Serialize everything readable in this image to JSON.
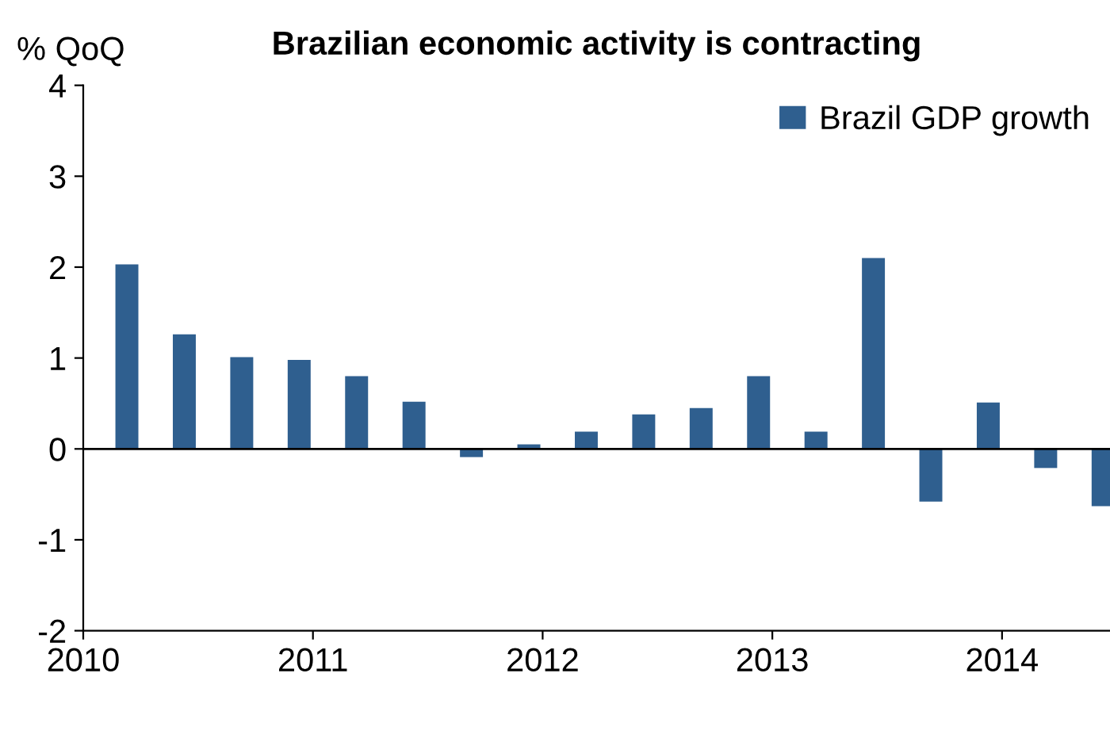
{
  "chart_data": {
    "type": "bar",
    "title": "Brazilian economic activity is contracting",
    "ylabel": "% QoQ",
    "x": [
      2010.19,
      2010.44,
      2010.69,
      2010.94,
      2011.19,
      2011.44,
      2011.69,
      2011.94,
      2012.19,
      2012.44,
      2012.69,
      2012.94,
      2013.19,
      2013.44,
      2013.69,
      2013.94,
      2014.19,
      2014.44
    ],
    "series": [
      {
        "name": "Brazil GDP growth",
        "color": "#2f5f8f",
        "values": [
          2.03,
          1.26,
          1.01,
          0.98,
          0.8,
          0.52,
          -0.09,
          0.05,
          0.19,
          0.38,
          0.45,
          0.8,
          0.19,
          2.1,
          -0.58,
          0.51,
          -0.21,
          -0.63
        ]
      }
    ],
    "xlim": [
      2010,
      2014.47
    ],
    "xticks": [
      2010,
      2011,
      2012,
      2013,
      2014
    ],
    "ylim": [
      -2,
      4
    ],
    "yticks": [
      -2,
      -1,
      0,
      1,
      2,
      3,
      4
    ],
    "ref_lines": [
      {
        "axis": "y",
        "value": 0,
        "color": "#000000"
      }
    ],
    "grid": false,
    "legend": "top right"
  }
}
